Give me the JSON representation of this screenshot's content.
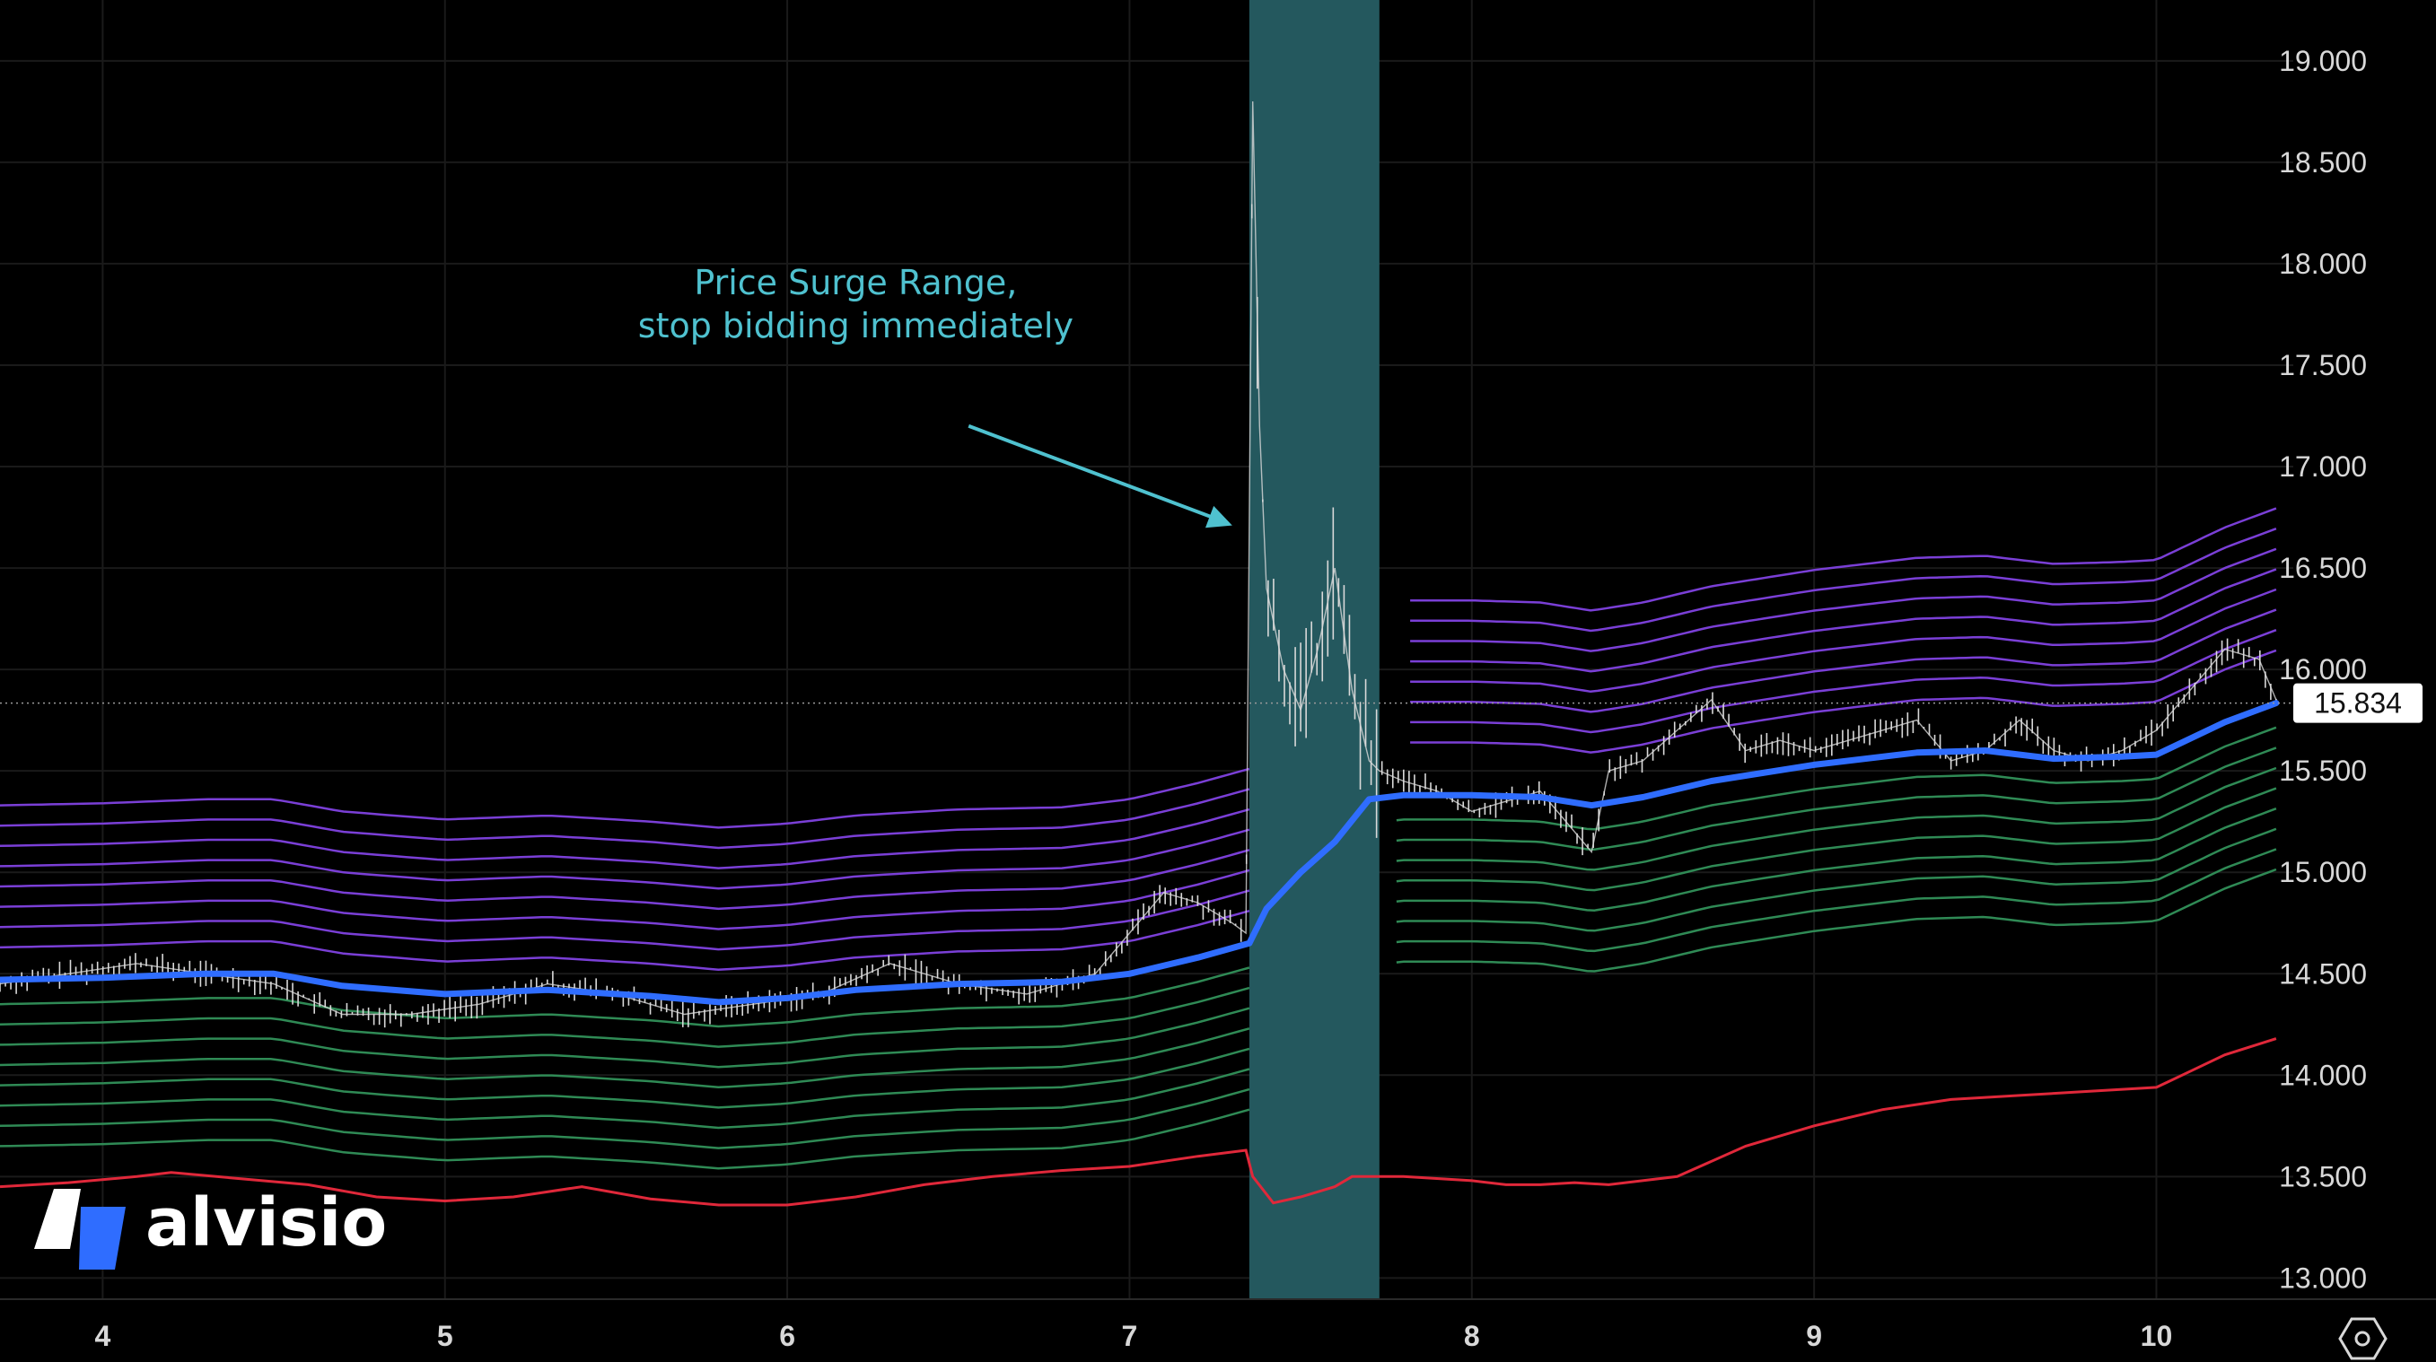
{
  "brand": {
    "name": "alvisio",
    "icon": "alvisio-logo-icon"
  },
  "settings_icon": "gear-hexagon-icon",
  "colors": {
    "background": "#000000",
    "grid": "#1a1a1a",
    "candle": "#d9d9d9",
    "ema": "#2f6dff",
    "upper_bands": "#7a3fd6",
    "lower_bands": "#2f8a55",
    "floor_line": "#e0283a",
    "surge_zone": "#24585e",
    "annotation": "#4fc1cf",
    "price_tag_bg": "#ffffff"
  },
  "chart_data": {
    "type": "line",
    "title": "",
    "xlabel": "",
    "ylabel": "",
    "ylim": [
      12.9,
      19.3
    ],
    "xlim": [
      3.7,
      10.4
    ],
    "grid": true,
    "y_ticks": [
      {
        "value": 13.0,
        "label": "13.000"
      },
      {
        "value": 13.5,
        "label": "13.500"
      },
      {
        "value": 14.0,
        "label": "14.000"
      },
      {
        "value": 14.5,
        "label": "14.500"
      },
      {
        "value": 15.0,
        "label": "15.000"
      },
      {
        "value": 15.5,
        "label": "15.500"
      },
      {
        "value": 16.0,
        "label": "16.000"
      },
      {
        "value": 16.5,
        "label": "16.500"
      },
      {
        "value": 17.0,
        "label": "17.000"
      },
      {
        "value": 17.5,
        "label": "17.500"
      },
      {
        "value": 18.0,
        "label": "18.000"
      },
      {
        "value": 18.5,
        "label": "18.500"
      },
      {
        "value": 19.0,
        "label": "19.000"
      }
    ],
    "x_ticks": [
      {
        "value": 4,
        "label": "4"
      },
      {
        "value": 5,
        "label": "5"
      },
      {
        "value": 6,
        "label": "6"
      },
      {
        "value": 7,
        "label": "7"
      },
      {
        "value": 8,
        "label": "8"
      },
      {
        "value": 9,
        "label": "9"
      },
      {
        "value": 10,
        "label": "10"
      }
    ],
    "last_price": {
      "value": 15.834,
      "label": "15.834"
    },
    "surge_range": {
      "x_start": 7.35,
      "x_end": 7.73
    },
    "annotation": {
      "lines": [
        "Price Surge Range,",
        "stop bidding immediately"
      ],
      "x": 6.2,
      "y_top": 17.85,
      "arrow_from": {
        "x": 6.53,
        "y": 17.2
      },
      "arrow_to": {
        "x": 7.3,
        "y": 16.71
      }
    },
    "series": [
      {
        "role": "price",
        "x": [
          3.7,
          3.9,
          4.1,
          4.3,
          4.5,
          4.7,
          4.9,
          5.1,
          5.3,
          5.5,
          5.7,
          5.9,
          6.1,
          6.3,
          6.5,
          6.7,
          6.9,
          7.0,
          7.1,
          7.2,
          7.3,
          7.34,
          7.36,
          7.38,
          7.4,
          7.45,
          7.5,
          7.55,
          7.6,
          7.65,
          7.7,
          7.73,
          7.8,
          7.9,
          8.0,
          8.1,
          8.2,
          8.3,
          8.35,
          8.4,
          8.5,
          8.6,
          8.7,
          8.8,
          8.9,
          9.0,
          9.1,
          9.2,
          9.3,
          9.4,
          9.5,
          9.6,
          9.7,
          9.8,
          9.9,
          10.0,
          10.1,
          10.2,
          10.3,
          10.35
        ],
        "values": [
          14.45,
          14.5,
          14.55,
          14.5,
          14.45,
          14.3,
          14.3,
          14.35,
          14.45,
          14.4,
          14.3,
          14.35,
          14.4,
          14.55,
          14.45,
          14.4,
          14.5,
          14.7,
          14.9,
          14.85,
          14.75,
          14.7,
          18.8,
          17.2,
          16.4,
          16.0,
          15.8,
          16.1,
          16.5,
          15.9,
          15.55,
          15.5,
          15.45,
          15.4,
          15.3,
          15.35,
          15.4,
          15.2,
          15.1,
          15.5,
          15.55,
          15.7,
          15.85,
          15.6,
          15.65,
          15.6,
          15.65,
          15.7,
          15.75,
          15.55,
          15.6,
          15.75,
          15.6,
          15.55,
          15.6,
          15.7,
          15.9,
          16.1,
          16.05,
          15.85
        ]
      },
      {
        "role": "ema",
        "x": [
          3.7,
          4.0,
          4.3,
          4.5,
          4.7,
          5.0,
          5.3,
          5.6,
          5.8,
          6.0,
          6.2,
          6.5,
          6.8,
          7.0,
          7.2,
          7.35,
          7.4,
          7.5,
          7.6,
          7.7,
          7.8,
          8.0,
          8.2,
          8.35,
          8.5,
          8.7,
          9.0,
          9.3,
          9.5,
          9.7,
          9.9,
          10.0,
          10.1,
          10.2,
          10.35
        ],
        "values": [
          14.47,
          14.48,
          14.5,
          14.5,
          14.44,
          14.4,
          14.42,
          14.39,
          14.36,
          14.38,
          14.42,
          14.45,
          14.46,
          14.5,
          14.58,
          14.65,
          14.82,
          15.0,
          15.15,
          15.36,
          15.38,
          15.38,
          15.37,
          15.33,
          15.37,
          15.45,
          15.53,
          15.59,
          15.6,
          15.56,
          15.57,
          15.58,
          15.66,
          15.74,
          15.834
        ]
      },
      {
        "role": "floor",
        "x": [
          3.7,
          3.9,
          4.1,
          4.2,
          4.4,
          4.6,
          4.8,
          5.0,
          5.2,
          5.4,
          5.6,
          5.8,
          6.0,
          6.2,
          6.4,
          6.6,
          6.8,
          7.0,
          7.2,
          7.34,
          7.36,
          7.42,
          7.5,
          7.6,
          7.65,
          7.7,
          7.8,
          8.0,
          8.1,
          8.2,
          8.3,
          8.4,
          8.6,
          8.8,
          9.0,
          9.2,
          9.4,
          9.6,
          9.8,
          10.0,
          10.1,
          10.2,
          10.35
        ],
        "values": [
          13.45,
          13.47,
          13.5,
          13.52,
          13.49,
          13.46,
          13.4,
          13.38,
          13.4,
          13.45,
          13.39,
          13.36,
          13.36,
          13.4,
          13.46,
          13.5,
          13.53,
          13.55,
          13.6,
          13.63,
          13.5,
          13.37,
          13.4,
          13.45,
          13.5,
          13.5,
          13.5,
          13.48,
          13.46,
          13.46,
          13.47,
          13.46,
          13.5,
          13.65,
          13.75,
          13.83,
          13.88,
          13.9,
          13.92,
          13.94,
          14.02,
          14.1,
          14.18
        ]
      }
    ],
    "bands": {
      "upper_count": 8,
      "lower_count": 8,
      "step": 0.1,
      "gap_start": 7.35,
      "gap_end": 7.78
    }
  }
}
